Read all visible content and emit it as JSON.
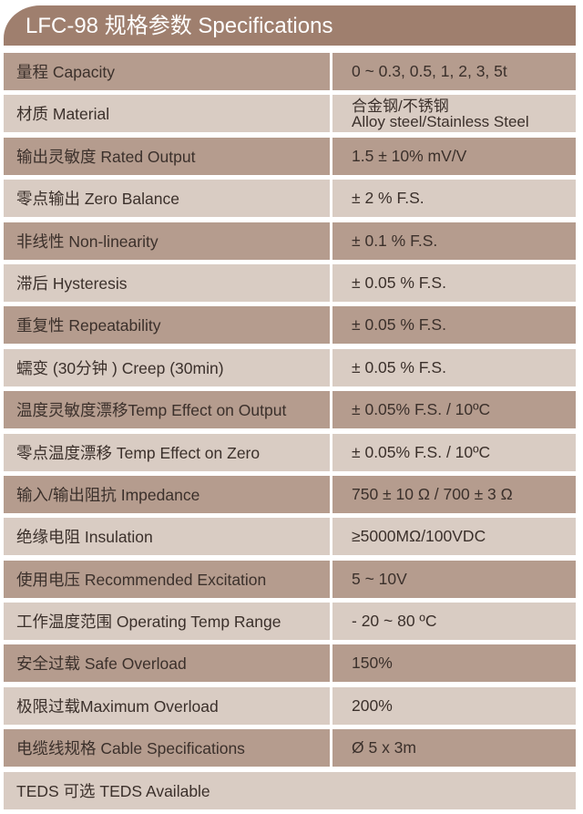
{
  "title": "LFC-98 规格参数 Specifications",
  "colors": {
    "header": "#9f7f6e",
    "row_dark": "#b59c8e",
    "row_light": "#d9ccc3"
  },
  "rows": [
    {
      "label": "量程 Capacity",
      "value": "0 ~ 0.3, 0.5, 1, 2, 3, 5t"
    },
    {
      "label": "材质 Material",
      "value": "合金钢/不锈钢",
      "value2": "Alloy steel/Stainless Steel"
    },
    {
      "label": "输出灵敏度 Rated Output",
      "value": "1.5 ± 10% mV/V"
    },
    {
      "label": "零点输出  Zero Balance",
      "value": "± 2 % F.S."
    },
    {
      "label": "非线性 Non-linearity",
      "value": "± 0.1 % F.S."
    },
    {
      "label": "滞后 Hysteresis",
      "value": "± 0.05 % F.S."
    },
    {
      "label": "重复性 Repeatability",
      "value": "± 0.05 % F.S."
    },
    {
      "label": "蠕变 (30分钟 ) Creep (30min)",
      "value": "± 0.05 % F.S."
    },
    {
      "label": "温度灵敏度漂移Temp Effect on Output",
      "value": "± 0.05% F.S. / 10ºC"
    },
    {
      "label": "零点温度漂移 Temp Effect on Zero",
      "value": "± 0.05% F.S. / 10ºC"
    },
    {
      "label": "输入/输出阻抗 Impedance",
      "value": "750 ± 10 Ω / 700 ± 3 Ω"
    },
    {
      "label": "绝缘电阻  Insulation",
      "value": "≥5000MΩ/100VDC"
    },
    {
      "label": "使用电压 Recommended Excitation",
      "value": "5 ~ 10V"
    },
    {
      "label": "工作温度范围 Operating Temp  Range",
      "value": "- 20 ~ 80 ºC"
    },
    {
      "label": "安全过载 Safe Overload",
      "value": "150%"
    },
    {
      "label": "极限过载Maximum Overload",
      "value": "200%"
    },
    {
      "label": "电缆线规格 Cable Specifications",
      "value": "Ø 5 x 3m"
    }
  ],
  "footer": "TEDS 可选 TEDS Available"
}
